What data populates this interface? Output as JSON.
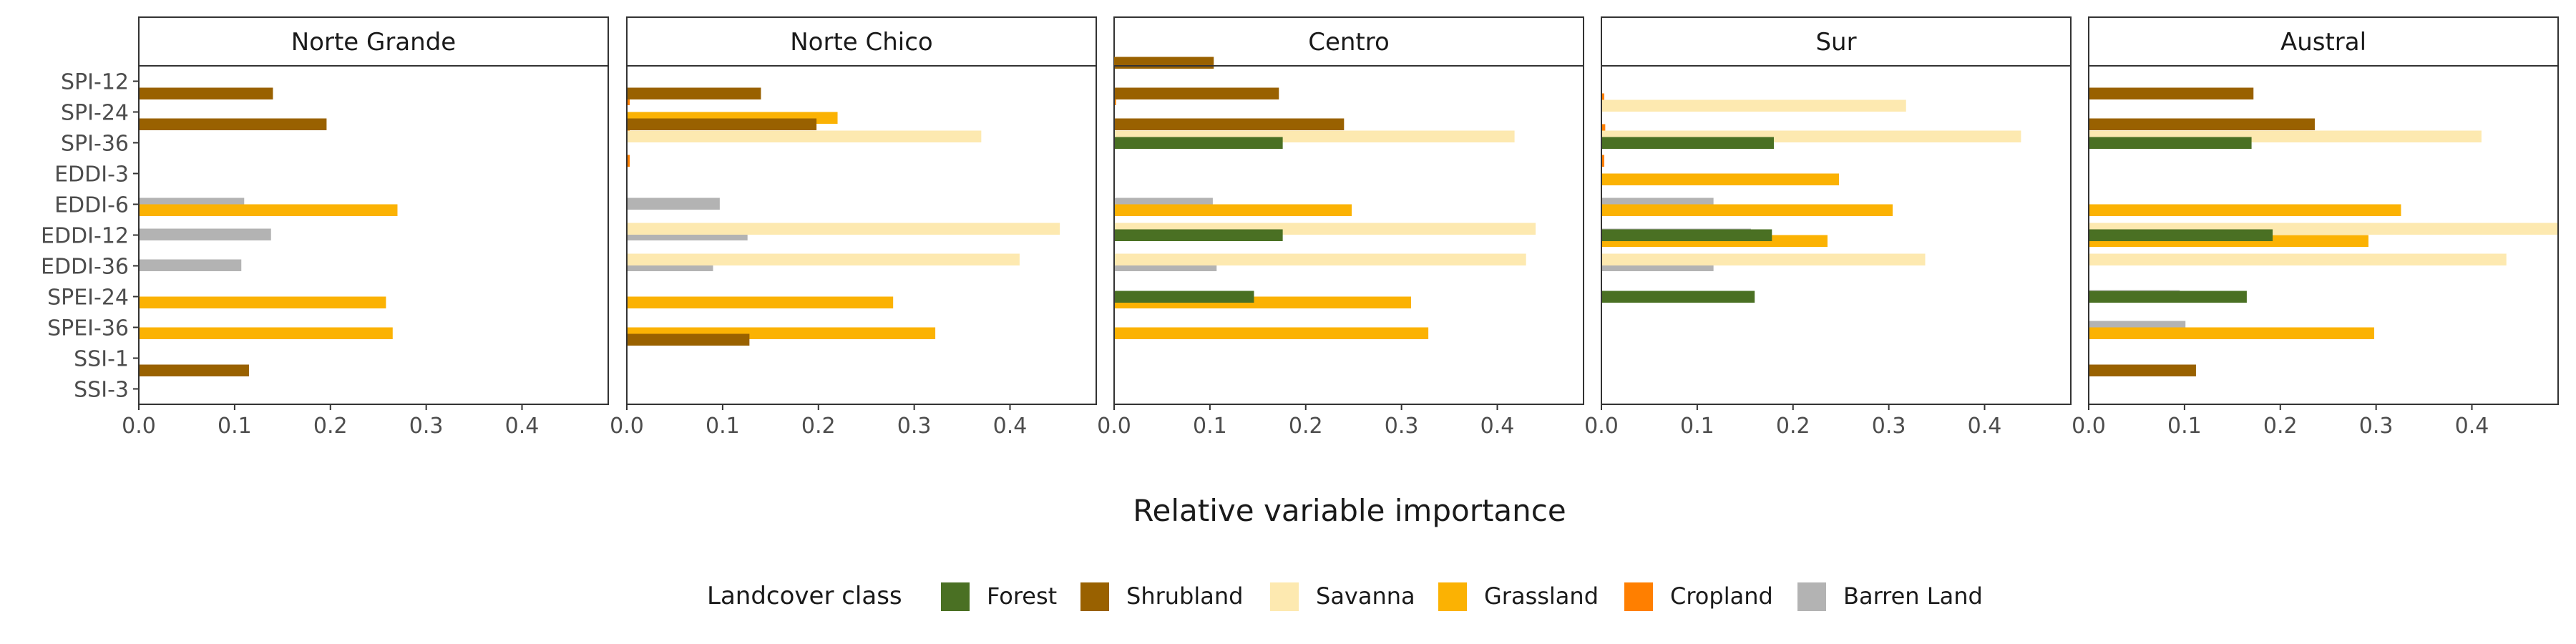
{
  "chart_data": {
    "type": "bar",
    "orientation": "horizontal",
    "xlabel": "Relative variable importance",
    "ylabel": "",
    "xlim": [
      0,
      0.49
    ],
    "x_ticks": [
      0.0,
      0.1,
      0.2,
      0.3,
      0.4
    ],
    "x_tick_labels": [
      "0.0",
      "0.1",
      "0.2",
      "0.3",
      "0.4"
    ],
    "legend_title": "Landcover class",
    "legend_position": "bottom",
    "grid": false,
    "categories": [
      "SPI-12",
      "SPI-24",
      "SPI-36",
      "EDDI-3",
      "EDDI-6",
      "EDDI-12",
      "EDDI-36",
      "SPEI-24",
      "SPEI-36",
      "SSI-1",
      "SSI-3"
    ],
    "classes": [
      {
        "name": "Forest",
        "color": "#4a7023"
      },
      {
        "name": "Shrubland",
        "color": "#996100"
      },
      {
        "name": "Savanna",
        "color": "#fde9b0"
      },
      {
        "name": "Grassland",
        "color": "#fbb203"
      },
      {
        "name": "Cropland",
        "color": "#ff7f00"
      },
      {
        "name": "Barren Land",
        "color": "#b3b3b3"
      }
    ],
    "facets": [
      {
        "title": "Norte Grande",
        "bars": [
          {
            "category": "SPI-24",
            "class": "Shrubland",
            "value": 0.14
          },
          {
            "category": "SPI-36",
            "class": "Shrubland",
            "value": 0.196
          },
          {
            "category": "EDDI-3",
            "class": "Barren Land",
            "value": 0.11
          },
          {
            "category": "EDDI-6",
            "class": "Barren Land",
            "value": 0.138
          },
          {
            "category": "EDDI-6",
            "class": "Grassland",
            "value": 0.27
          },
          {
            "category": "EDDI-12",
            "class": "Barren Land",
            "value": 0.107
          },
          {
            "category": "SPEI-24",
            "class": "Grassland",
            "value": 0.258
          },
          {
            "category": "SPEI-36",
            "class": "Grassland",
            "value": 0.265
          },
          {
            "category": "SSI-3",
            "class": "Shrubland",
            "value": 0.115
          }
        ]
      },
      {
        "title": "Norte Chico",
        "bars": [
          {
            "category": "SPI-12",
            "class": "Cropland",
            "value": 0.003
          },
          {
            "category": "SPI-24",
            "class": "Cropland",
            "value": 0.003
          },
          {
            "category": "SPI-24",
            "class": "Grassland",
            "value": 0.22
          },
          {
            "category": "SPI-24",
            "class": "Shrubland",
            "value": 0.14
          },
          {
            "category": "SPI-36",
            "class": "Cropland",
            "value": 0.003
          },
          {
            "category": "SPI-36",
            "class": "Savanna",
            "value": 0.37
          },
          {
            "category": "SPI-36",
            "class": "Shrubland",
            "value": 0.198
          },
          {
            "category": "EDDI-3",
            "class": "Barren Land",
            "value": 0.097
          },
          {
            "category": "EDDI-6",
            "class": "Barren Land",
            "value": 0.126
          },
          {
            "category": "EDDI-12",
            "class": "Barren Land",
            "value": 0.09
          },
          {
            "category": "EDDI-12",
            "class": "Savanna",
            "value": 0.452
          },
          {
            "category": "EDDI-36",
            "class": "Savanna",
            "value": 0.41
          },
          {
            "category": "SPEI-24",
            "class": "Grassland",
            "value": 0.278
          },
          {
            "category": "SPEI-36",
            "class": "Grassland",
            "value": 0.322
          },
          {
            "category": "SSI-1",
            "class": "Shrubland",
            "value": 0.128
          }
        ]
      },
      {
        "title": "Centro",
        "bars": [
          {
            "category": "SPI-12",
            "class": "Cropland",
            "value": 0.002
          },
          {
            "category": "SPI-12",
            "class": "Shrubland",
            "value": 0.104
          },
          {
            "category": "SPI-24",
            "class": "Shrubland",
            "value": 0.172
          },
          {
            "category": "SPI-36",
            "class": "Savanna",
            "value": 0.418
          },
          {
            "category": "SPI-36",
            "class": "Shrubland",
            "value": 0.24
          },
          {
            "category": "EDDI-3",
            "class": "Barren Land",
            "value": 0.103
          },
          {
            "category": "EDDI-3",
            "class": "Forest",
            "value": 0.176
          },
          {
            "category": "EDDI-6",
            "class": "Barren Land",
            "value": 0.143
          },
          {
            "category": "EDDI-6",
            "class": "Grassland",
            "value": 0.248
          },
          {
            "category": "EDDI-12",
            "class": "Barren Land",
            "value": 0.107
          },
          {
            "category": "EDDI-12",
            "class": "Savanna",
            "value": 0.44
          },
          {
            "category": "EDDI-36",
            "class": "Savanna",
            "value": 0.43
          },
          {
            "category": "EDDI-36",
            "class": "Forest",
            "value": 0.176
          },
          {
            "category": "SPEI-24",
            "class": "Grassland",
            "value": 0.31
          },
          {
            "category": "SPEI-36",
            "class": "Grassland",
            "value": 0.328
          },
          {
            "category": "SPEI-36",
            "class": "Forest",
            "value": 0.146
          }
        ]
      },
      {
        "title": "Sur",
        "bars": [
          {
            "category": "SPI-12",
            "class": "Cropland",
            "value": 0.003
          },
          {
            "category": "SPI-24",
            "class": "Cropland",
            "value": 0.004
          },
          {
            "category": "SPI-24",
            "class": "Savanna",
            "value": 0.318
          },
          {
            "category": "SPI-36",
            "class": "Cropland",
            "value": 0.003
          },
          {
            "category": "SPI-36",
            "class": "Savanna",
            "value": 0.438
          },
          {
            "category": "EDDI-3",
            "class": "Barren Land",
            "value": 0.117
          },
          {
            "category": "EDDI-3",
            "class": "Grassland",
            "value": 0.248
          },
          {
            "category": "EDDI-3",
            "class": "Forest",
            "value": 0.18
          },
          {
            "category": "EDDI-6",
            "class": "Barren Land",
            "value": 0.156
          },
          {
            "category": "EDDI-6",
            "class": "Grassland",
            "value": 0.304
          },
          {
            "category": "EDDI-12",
            "class": "Barren Land",
            "value": 0.117
          },
          {
            "category": "EDDI-12",
            "class": "Grassland",
            "value": 0.236
          },
          {
            "category": "EDDI-36",
            "class": "Savanna",
            "value": 0.338
          },
          {
            "category": "EDDI-36",
            "class": "Forest",
            "value": 0.178
          },
          {
            "category": "SPEI-36",
            "class": "Forest",
            "value": 0.16
          }
        ]
      },
      {
        "title": "Austral",
        "bars": [
          {
            "category": "SPI-24",
            "class": "Shrubland",
            "value": 0.172
          },
          {
            "category": "SPI-36",
            "class": "Savanna",
            "value": 0.41
          },
          {
            "category": "SPI-36",
            "class": "Shrubland",
            "value": 0.236
          },
          {
            "category": "EDDI-3",
            "class": "Forest",
            "value": 0.17
          },
          {
            "category": "EDDI-6",
            "class": "Barren Land",
            "value": 0.116
          },
          {
            "category": "EDDI-6",
            "class": "Grassland",
            "value": 0.326
          },
          {
            "category": "EDDI-12",
            "class": "Grassland",
            "value": 0.292
          },
          {
            "category": "EDDI-12",
            "class": "Savanna",
            "value": 0.49
          },
          {
            "category": "EDDI-36",
            "class": "Barren Land",
            "value": 0.095
          },
          {
            "category": "EDDI-36",
            "class": "Savanna",
            "value": 0.436
          },
          {
            "category": "EDDI-36",
            "class": "Forest",
            "value": 0.192
          },
          {
            "category": "SPEI-24",
            "class": "Barren Land",
            "value": 0.101
          },
          {
            "category": "SPEI-36",
            "class": "Grassland",
            "value": 0.298
          },
          {
            "category": "SPEI-36",
            "class": "Forest",
            "value": 0.165
          },
          {
            "category": "SSI-3",
            "class": "Shrubland",
            "value": 0.112
          }
        ]
      }
    ]
  }
}
